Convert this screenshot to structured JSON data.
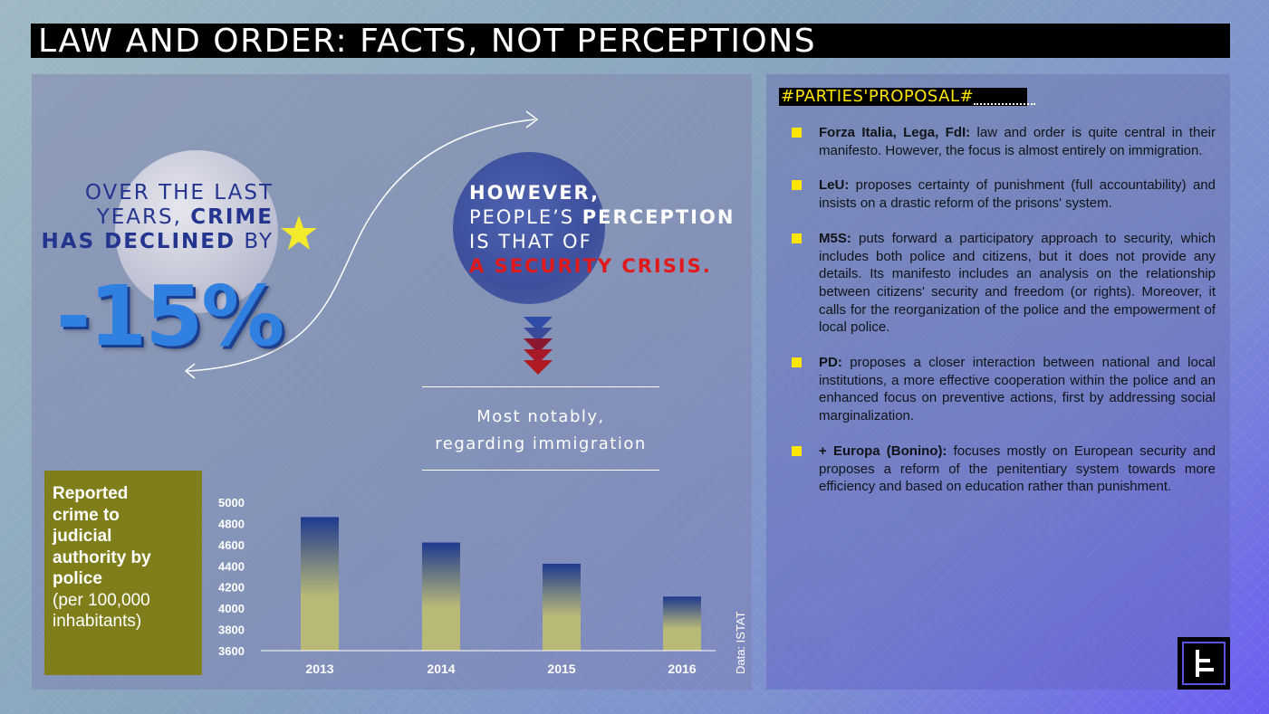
{
  "title": "LAW AND ORDER: FACTS, NOT PERCEPTIONS",
  "left": {
    "line1": "OVER THE LAST",
    "line2_pre": "YEARS, ",
    "line2_bold": "CRIME",
    "line3_bold": "HAS DECLINED",
    "line3_post": " BY",
    "big_number": "-15%"
  },
  "right": {
    "however": "HOWEVER,",
    "line2_pre": "PEOPLE’S ",
    "line2_bold": "PERCEPTION",
    "line3": "IS THAT OF",
    "line4": "A SECURITY CRISIS.",
    "notably1": "Most notably,",
    "notably2": "regarding immigration"
  },
  "box": {
    "line1": "Reported",
    "line2": "crime to",
    "line3": "judicial",
    "line4": "authority by",
    "line5": "police",
    "line6": "(per 100,000",
    "line7": "inhabitants)"
  },
  "chart_data": {
    "type": "bar",
    "categories": [
      "2013",
      "2014",
      "2015",
      "2016"
    ],
    "values": [
      4860,
      4620,
      4420,
      4110
    ],
    "title": "",
    "xlabel": "",
    "ylabel": "",
    "ylim": [
      3600,
      5000
    ],
    "yticks": [
      "5000",
      "4800",
      "4600",
      "4400",
      "4200",
      "4000",
      "3800",
      "3600"
    ],
    "grid": false,
    "source": "Data: ISTAT",
    "colors": {
      "top": "#1e3a8f",
      "bottom": "#b9b977"
    }
  },
  "parties": {
    "heading": "#PARTIES'PROPOSAL#",
    "items": [
      {
        "bold": "Forza Italia, Lega, FdI:",
        "text": " law and order is quite central in their manifesto. However, the focus is almost entirely on immigration."
      },
      {
        "bold": "LeU:",
        "text": " proposes certainty of punishment (full accountability) and insists on a  drastic reform of the prisons' system."
      },
      {
        "bold": "M5S:",
        "text": " puts forward a participatory approach to security, which includes both police and citizens, but it does not provide any details. Its manifesto includes an analysis on the relationship between citizens' security and freedom (or rights). Moreover, it calls for the reorganization of the police and the empowerment of local police."
      },
      {
        "bold": "PD:",
        "text": " proposes a closer interaction between national and local institutions, a more effective cooperation within the police and an enhanced focus on preventive actions, first by addressing social marginalization."
      },
      {
        "bold": "+ Europa (Bonino):",
        "text": " focuses mostly on European security and proposes a reform of the penitentiary system towards more efficiency and based on education rather than punishment."
      }
    ]
  },
  "colors": {
    "accent_yellow": "#ffe600",
    "dark_blue": "#23358f",
    "red": "#e01a1a",
    "olive": "#7f7e1a"
  }
}
